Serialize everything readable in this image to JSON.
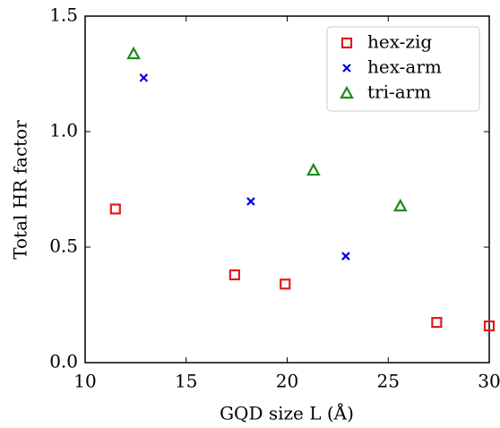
{
  "chart_data": {
    "type": "scatter",
    "xlabel": "GQD size L (Å)",
    "ylabel": "Total HR factor",
    "xlim": [
      10,
      30
    ],
    "ylim": [
      0,
      1.5
    ],
    "xticks": [
      10,
      15,
      20,
      25,
      30
    ],
    "yticks": [
      {
        "value": 0,
        "label": "0.0"
      },
      {
        "value": 0.5,
        "label": "0.5"
      },
      {
        "value": 1,
        "label": "1.0"
      },
      {
        "value": 1.5,
        "label": "1.5"
      }
    ],
    "legend": "upper right",
    "series": [
      {
        "name": "hex-zig",
        "color": "#e31a1c",
        "marker": "square",
        "x": [
          11.5,
          17.4,
          19.9,
          27.4,
          30.0
        ],
        "values": [
          0.665,
          0.38,
          0.34,
          0.174,
          0.159
        ]
      },
      {
        "name": "hex-arm",
        "color": "#0000e6",
        "marker": "x",
        "x": [
          12.9,
          18.2,
          22.9
        ],
        "values": [
          1.233,
          0.698,
          0.461
        ]
      },
      {
        "name": "tri-arm",
        "color": "#1a8c1a",
        "marker": "triangle",
        "x": [
          12.4,
          21.3,
          25.6
        ],
        "values": [
          1.337,
          0.833,
          0.678
        ]
      }
    ]
  }
}
